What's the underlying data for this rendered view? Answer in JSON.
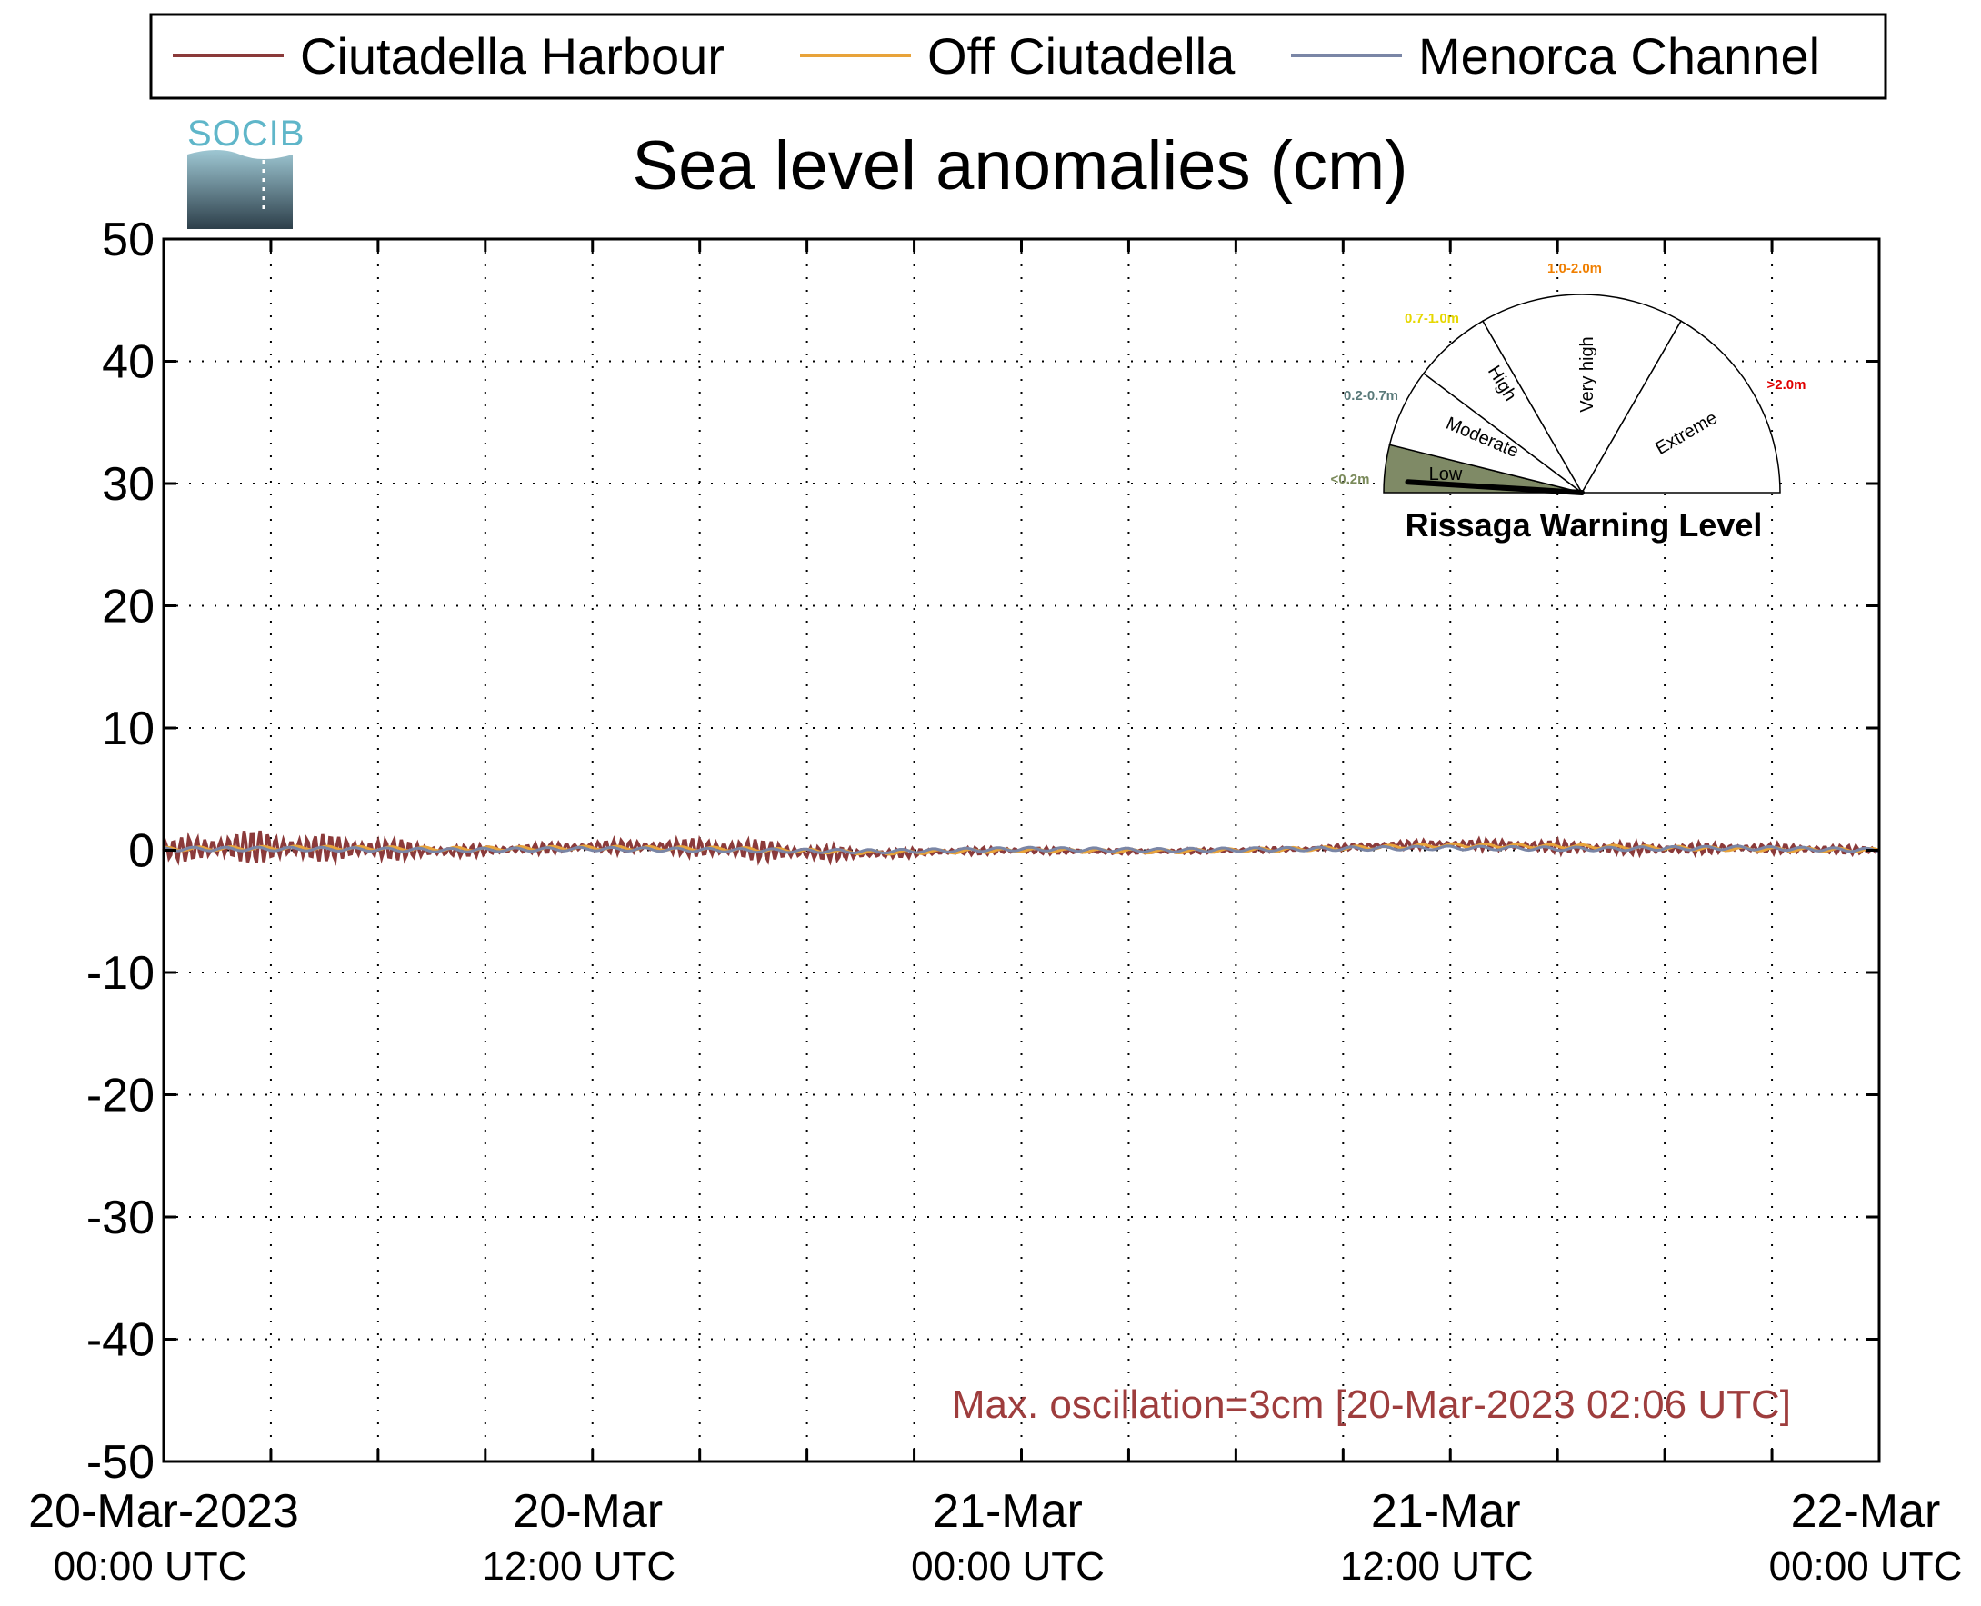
{
  "chart_data": {
    "type": "line",
    "title": "Sea level anomalies (cm)",
    "xlabel": "",
    "ylabel": "",
    "ylim": [
      -50,
      50
    ],
    "yticks": [
      50,
      40,
      30,
      20,
      10,
      0,
      -10,
      -20,
      -30,
      -40,
      -50
    ],
    "xlim": [
      "2023-03-20 00:00",
      "2023-03-22 00:00"
    ],
    "xticks": [
      {
        "date": "20-Mar-2023",
        "time": "00:00 UTC"
      },
      {
        "date": "20-Mar",
        "time": "12:00 UTC"
      },
      {
        "date": "21-Mar",
        "time": "00:00 UTC"
      },
      {
        "date": "21-Mar",
        "time": "12:00 UTC"
      },
      {
        "date": "22-Mar",
        "time": "00:00 UTC"
      }
    ],
    "grid": true,
    "legend_position": "top",
    "series": [
      {
        "name": "Ciutadella Harbour",
        "color": "#8b3a3a",
        "x_hours": [
          0,
          2,
          4,
          6,
          8,
          10,
          12,
          14,
          16,
          18,
          20,
          22,
          24,
          26,
          28,
          30,
          32,
          34,
          36,
          38,
          40,
          42,
          44,
          46,
          48
        ],
        "y": [
          0.0,
          0.3,
          0.2,
          0.1,
          -0.1,
          0.1,
          0.3,
          0.3,
          0.1,
          -0.2,
          -0.3,
          -0.1,
          0.0,
          -0.1,
          -0.1,
          0.0,
          0.1,
          0.4,
          0.5,
          0.4,
          0.2,
          0.1,
          0.2,
          0.1,
          0.0
        ],
        "oscillation_amplitude": [
          0.8,
          1.5,
          1.2,
          1.0,
          0.5,
          0.4,
          0.5,
          0.6,
          1.0,
          0.7,
          0.4,
          0.3,
          0.3,
          0.2,
          0.2,
          0.2,
          0.2,
          0.3,
          0.4,
          0.5,
          0.5,
          0.5,
          0.4,
          0.4,
          0.3
        ]
      },
      {
        "name": "Off Ciutadella",
        "color": "#e8a33a",
        "x_hours": [
          0,
          4,
          8,
          12,
          16,
          20,
          24,
          28,
          32,
          36,
          40,
          44,
          48
        ],
        "y": [
          0.1,
          0.2,
          0.1,
          0.2,
          0.1,
          -0.2,
          0.0,
          -0.1,
          0.1,
          0.4,
          0.3,
          0.1,
          0.0
        ]
      },
      {
        "name": "Menorca Channel",
        "color": "#7a86a6",
        "x_hours": [
          0,
          4,
          8,
          12,
          16,
          20,
          24,
          28,
          32,
          36,
          40,
          44,
          48
        ],
        "y": [
          0.1,
          0.1,
          0.0,
          0.1,
          0.0,
          -0.1,
          0.1,
          0.0,
          0.1,
          0.2,
          0.1,
          0.2,
          0.0
        ]
      }
    ],
    "annotation": {
      "text": "Max. oscillation=3cm [20-Mar-2023 02:06 UTC]",
      "color": "#9e3d3d"
    }
  },
  "logo": {
    "text": "SOCIB"
  },
  "gauge": {
    "title": "Rissaga Warning Level",
    "current_level": "Low",
    "segments": [
      {
        "label": "Low",
        "range": "<0.2m",
        "range_color": "#7a8a5a",
        "fill": "#7f8a66"
      },
      {
        "label": "Moderate",
        "range": "0.2-0.7m",
        "range_color": "#5a7a7a",
        "fill": "#ffffff"
      },
      {
        "label": "High",
        "range": "0.7-1.0m",
        "range_color": "#e6d700",
        "fill": "#ffffff"
      },
      {
        "label": "Very high",
        "range": "1.0-2.0m",
        "range_color": "#f07f00",
        "fill": "#ffffff"
      },
      {
        "label": "Extreme",
        "range": ">2.0m",
        "range_color": "#e00000",
        "fill": "#ffffff"
      }
    ]
  }
}
